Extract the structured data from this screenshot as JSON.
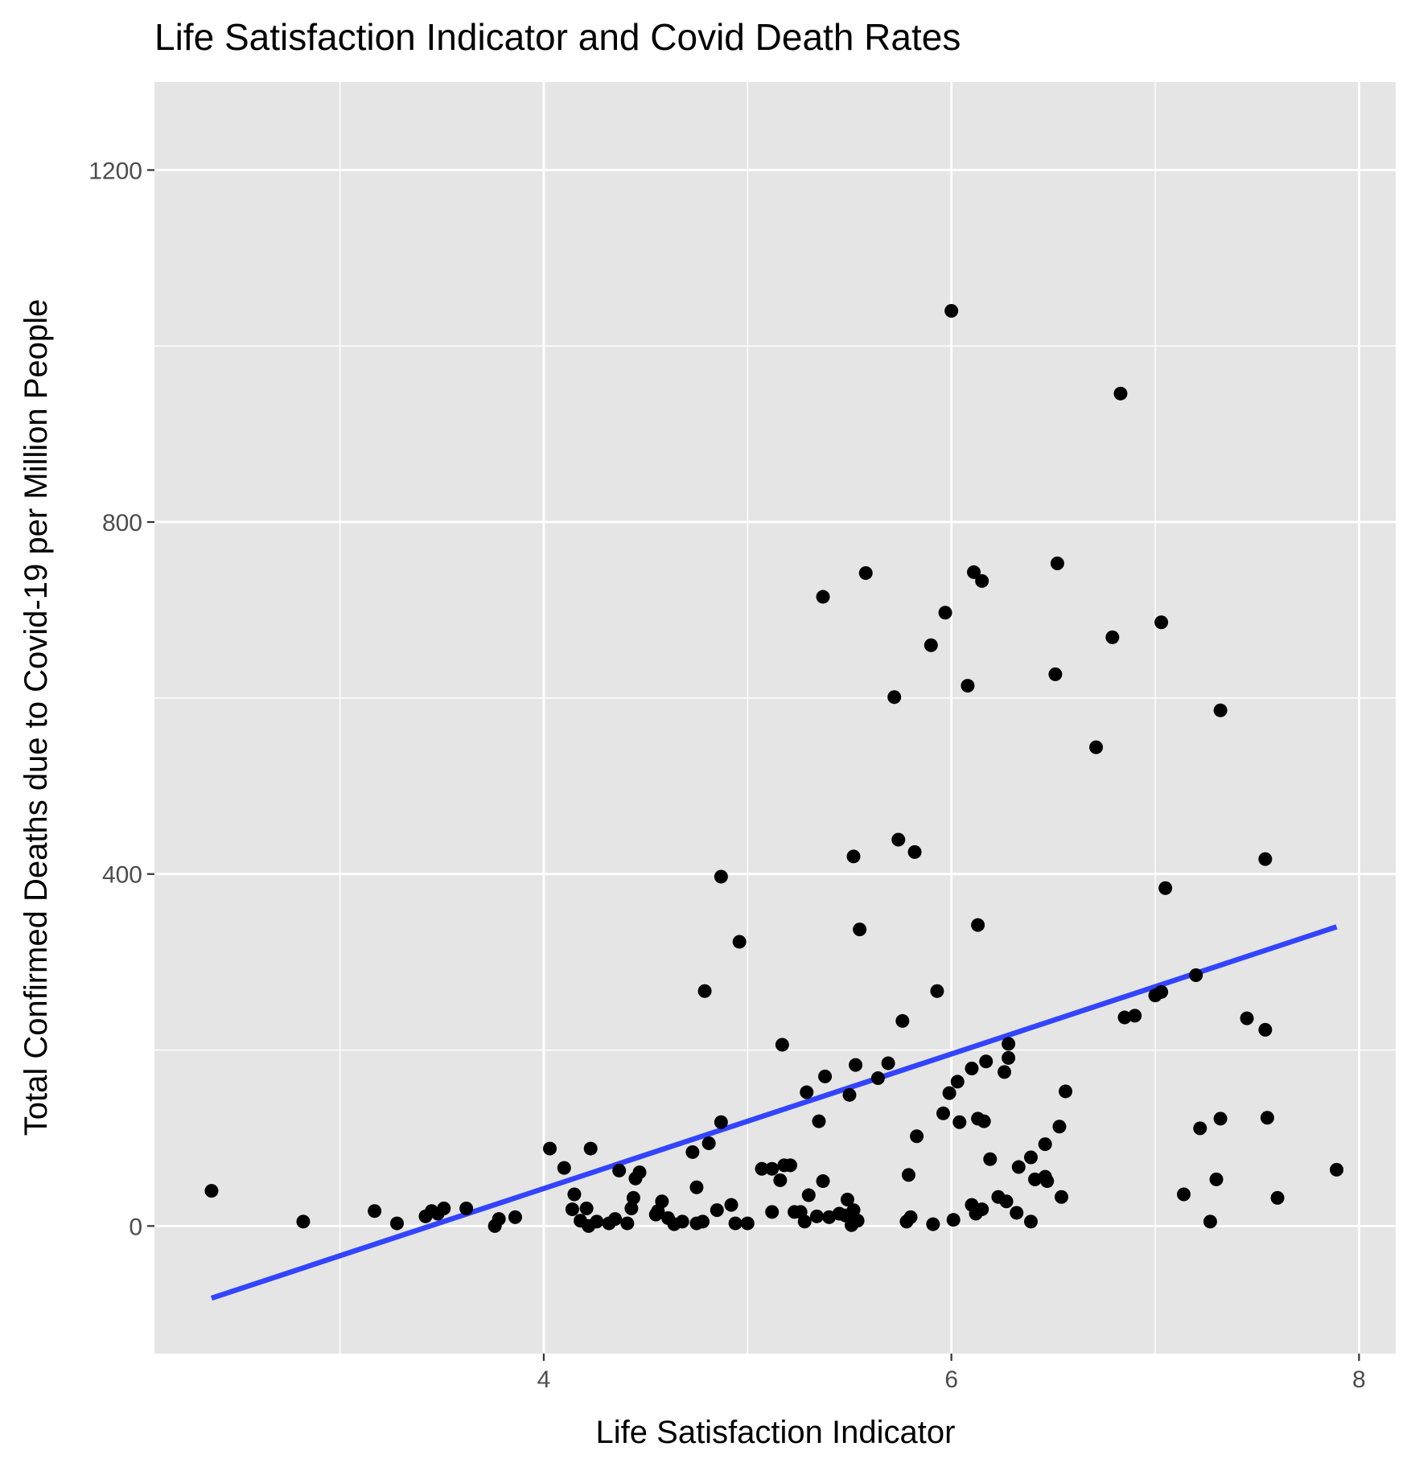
{
  "chart_data": {
    "type": "scatter",
    "title": "Life Satisfaction Indicator and Covid Death Rates",
    "xlabel": "Life Satisfaction Indicator",
    "ylabel": "Total Confirmed Deaths due to Covid-19 per Million People",
    "xlim": [
      2.09,
      8.18
    ],
    "ylim": [
      -145,
      1300
    ],
    "x_ticks": [
      "4",
      "6",
      "8"
    ],
    "x_tick_values": [
      4,
      6,
      8
    ],
    "x_minor_values": [
      3,
      5,
      7
    ],
    "y_ticks": [
      "0",
      "400",
      "800",
      "1200"
    ],
    "y_tick_values": [
      0,
      400,
      800,
      1200
    ],
    "y_minor_values": [
      200,
      600,
      1000
    ],
    "panel_background": "#e5e5e5",
    "point_color": "#000000",
    "trend_color": "#3344ff",
    "grid": true,
    "legend": "none",
    "trend_line": {
      "x": [
        2.37,
        7.89
      ],
      "y": [
        -82,
        340
      ]
    },
    "points": [
      {
        "x": 2.37,
        "y": 40
      },
      {
        "x": 2.82,
        "y": 5
      },
      {
        "x": 3.17,
        "y": 17
      },
      {
        "x": 3.28,
        "y": 3
      },
      {
        "x": 3.42,
        "y": 11
      },
      {
        "x": 3.45,
        "y": 17
      },
      {
        "x": 3.48,
        "y": 14
      },
      {
        "x": 3.51,
        "y": 20
      },
      {
        "x": 3.62,
        "y": 20
      },
      {
        "x": 3.76,
        "y": 0
      },
      {
        "x": 3.78,
        "y": 8
      },
      {
        "x": 3.86,
        "y": 10
      },
      {
        "x": 4.03,
        "y": 88
      },
      {
        "x": 4.1,
        "y": 66
      },
      {
        "x": 4.14,
        "y": 19
      },
      {
        "x": 4.15,
        "y": 36
      },
      {
        "x": 4.18,
        "y": 6
      },
      {
        "x": 4.21,
        "y": 20
      },
      {
        "x": 4.22,
        "y": 0
      },
      {
        "x": 4.23,
        "y": 88
      },
      {
        "x": 4.26,
        "y": 5
      },
      {
        "x": 4.32,
        "y": 3
      },
      {
        "x": 4.35,
        "y": 8
      },
      {
        "x": 4.37,
        "y": 63
      },
      {
        "x": 4.41,
        "y": 3
      },
      {
        "x": 4.43,
        "y": 20
      },
      {
        "x": 4.44,
        "y": 32
      },
      {
        "x": 4.45,
        "y": 54
      },
      {
        "x": 4.47,
        "y": 61
      },
      {
        "x": 4.55,
        "y": 13
      },
      {
        "x": 4.56,
        "y": 17
      },
      {
        "x": 4.58,
        "y": 28
      },
      {
        "x": 4.61,
        "y": 9
      },
      {
        "x": 4.64,
        "y": 2
      },
      {
        "x": 4.68,
        "y": 5
      },
      {
        "x": 4.73,
        "y": 84
      },
      {
        "x": 4.75,
        "y": 44
      },
      {
        "x": 4.75,
        "y": 3
      },
      {
        "x": 4.78,
        "y": 5
      },
      {
        "x": 4.79,
        "y": 267
      },
      {
        "x": 4.81,
        "y": 94
      },
      {
        "x": 4.85,
        "y": 18
      },
      {
        "x": 4.87,
        "y": 118
      },
      {
        "x": 4.87,
        "y": 397
      },
      {
        "x": 4.92,
        "y": 24
      },
      {
        "x": 4.94,
        "y": 3
      },
      {
        "x": 4.96,
        "y": 323
      },
      {
        "x": 5.0,
        "y": 3
      },
      {
        "x": 5.07,
        "y": 65
      },
      {
        "x": 5.12,
        "y": 16
      },
      {
        "x": 5.12,
        "y": 65
      },
      {
        "x": 5.16,
        "y": 52
      },
      {
        "x": 5.17,
        "y": 206
      },
      {
        "x": 5.18,
        "y": 69
      },
      {
        "x": 5.21,
        "y": 69
      },
      {
        "x": 5.23,
        "y": 16
      },
      {
        "x": 5.26,
        "y": 16
      },
      {
        "x": 5.28,
        "y": 5
      },
      {
        "x": 5.29,
        "y": 152
      },
      {
        "x": 5.3,
        "y": 35
      },
      {
        "x": 5.34,
        "y": 11
      },
      {
        "x": 5.35,
        "y": 119
      },
      {
        "x": 5.37,
        "y": 51
      },
      {
        "x": 5.37,
        "y": 715
      },
      {
        "x": 5.38,
        "y": 170
      },
      {
        "x": 5.4,
        "y": 10
      },
      {
        "x": 5.45,
        "y": 14
      },
      {
        "x": 5.48,
        "y": 12
      },
      {
        "x": 5.49,
        "y": 30
      },
      {
        "x": 5.5,
        "y": 149
      },
      {
        "x": 5.51,
        "y": 1
      },
      {
        "x": 5.52,
        "y": 18
      },
      {
        "x": 5.52,
        "y": 420
      },
      {
        "x": 5.53,
        "y": 183
      },
      {
        "x": 5.54,
        "y": 6
      },
      {
        "x": 5.55,
        "y": 337
      },
      {
        "x": 5.58,
        "y": 742
      },
      {
        "x": 5.64,
        "y": 168
      },
      {
        "x": 5.69,
        "y": 185
      },
      {
        "x": 5.72,
        "y": 601
      },
      {
        "x": 5.74,
        "y": 439
      },
      {
        "x": 5.76,
        "y": 233
      },
      {
        "x": 5.78,
        "y": 5
      },
      {
        "x": 5.79,
        "y": 58
      },
      {
        "x": 5.8,
        "y": 10
      },
      {
        "x": 5.82,
        "y": 425
      },
      {
        "x": 5.83,
        "y": 102
      },
      {
        "x": 5.9,
        "y": 660
      },
      {
        "x": 5.91,
        "y": 2
      },
      {
        "x": 5.93,
        "y": 267
      },
      {
        "x": 5.96,
        "y": 128
      },
      {
        "x": 5.97,
        "y": 697
      },
      {
        "x": 5.99,
        "y": 151
      },
      {
        "x": 6.0,
        "y": 1040
      },
      {
        "x": 6.01,
        "y": 7
      },
      {
        "x": 6.03,
        "y": 164
      },
      {
        "x": 6.04,
        "y": 118
      },
      {
        "x": 6.08,
        "y": 614
      },
      {
        "x": 6.1,
        "y": 24
      },
      {
        "x": 6.1,
        "y": 179
      },
      {
        "x": 6.11,
        "y": 743
      },
      {
        "x": 6.12,
        "y": 14
      },
      {
        "x": 6.13,
        "y": 342
      },
      {
        "x": 6.13,
        "y": 122
      },
      {
        "x": 6.15,
        "y": 733
      },
      {
        "x": 6.15,
        "y": 19
      },
      {
        "x": 6.16,
        "y": 119
      },
      {
        "x": 6.17,
        "y": 187
      },
      {
        "x": 6.19,
        "y": 76
      },
      {
        "x": 6.23,
        "y": 33
      },
      {
        "x": 6.26,
        "y": 175
      },
      {
        "x": 6.27,
        "y": 28
      },
      {
        "x": 6.28,
        "y": 207
      },
      {
        "x": 6.28,
        "y": 191
      },
      {
        "x": 6.32,
        "y": 15
      },
      {
        "x": 6.33,
        "y": 67
      },
      {
        "x": 6.39,
        "y": 78
      },
      {
        "x": 6.39,
        "y": 5
      },
      {
        "x": 6.41,
        "y": 53
      },
      {
        "x": 6.46,
        "y": 93
      },
      {
        "x": 6.46,
        "y": 56
      },
      {
        "x": 6.47,
        "y": 51
      },
      {
        "x": 6.51,
        "y": 627
      },
      {
        "x": 6.52,
        "y": 753
      },
      {
        "x": 6.53,
        "y": 113
      },
      {
        "x": 6.54,
        "y": 33
      },
      {
        "x": 6.56,
        "y": 153
      },
      {
        "x": 6.71,
        "y": 544
      },
      {
        "x": 6.79,
        "y": 669
      },
      {
        "x": 6.83,
        "y": 946
      },
      {
        "x": 6.85,
        "y": 237
      },
      {
        "x": 6.9,
        "y": 239
      },
      {
        "x": 7.0,
        "y": 262
      },
      {
        "x": 7.03,
        "y": 266
      },
      {
        "x": 7.03,
        "y": 686
      },
      {
        "x": 7.05,
        "y": 384
      },
      {
        "x": 7.14,
        "y": 36
      },
      {
        "x": 7.2,
        "y": 285
      },
      {
        "x": 7.22,
        "y": 111
      },
      {
        "x": 7.27,
        "y": 5
      },
      {
        "x": 7.3,
        "y": 53
      },
      {
        "x": 7.32,
        "y": 122
      },
      {
        "x": 7.32,
        "y": 586
      },
      {
        "x": 7.45,
        "y": 236
      },
      {
        "x": 7.54,
        "y": 223
      },
      {
        "x": 7.54,
        "y": 417
      },
      {
        "x": 7.55,
        "y": 123
      },
      {
        "x": 7.6,
        "y": 32
      },
      {
        "x": 7.89,
        "y": 64
      }
    ]
  }
}
